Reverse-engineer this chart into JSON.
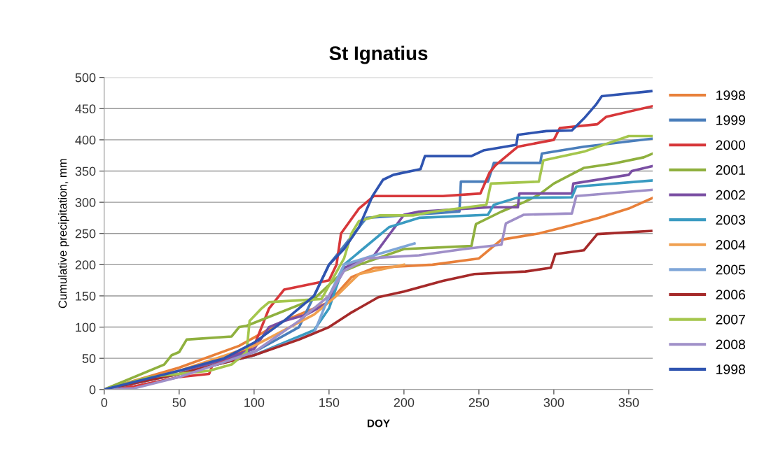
{
  "chart_data": {
    "type": "line",
    "title": "St Ignatius",
    "xlabel": "DOY",
    "ylabel": "Cumulative precipitation, mm",
    "xlim": [
      0,
      366
    ],
    "ylim": [
      0,
      500
    ],
    "xticks": [
      0,
      50,
      100,
      150,
      200,
      250,
      300,
      350
    ],
    "yticks": [
      0,
      50,
      100,
      150,
      200,
      250,
      300,
      350,
      400,
      450,
      500
    ],
    "grid": "y",
    "legend": "right",
    "marker": "none",
    "line_style": "solid",
    "series": [
      {
        "name": "1998",
        "color": "#e8803a",
        "x": [
          0,
          50,
          90,
          120,
          150,
          165,
          180,
          219,
          250,
          265,
          290,
          310,
          330,
          350,
          366
        ],
        "values": [
          0,
          35,
          70,
          110,
          140,
          180,
          195,
          200,
          210,
          240,
          250,
          262,
          275,
          290,
          307
        ]
      },
      {
        "name": "1999",
        "color": "#4a7ebb",
        "x": [
          0,
          50,
          100,
          130,
          150,
          160,
          175,
          237,
          238,
          256,
          260,
          291,
          292,
          320,
          366
        ],
        "values": [
          0,
          30,
          60,
          100,
          200,
          230,
          275,
          285,
          333,
          333,
          363,
          363,
          378,
          389,
          402
        ]
      },
      {
        "name": "2000",
        "color": "#d7373a",
        "x": [
          0,
          20,
          50,
          70,
          72,
          100,
          110,
          120,
          150,
          155,
          158,
          170,
          180,
          226,
          251,
          257,
          261,
          276,
          300,
          304,
          329,
          335,
          366
        ],
        "values": [
          0,
          5,
          20,
          25,
          38,
          70,
          130,
          160,
          175,
          200,
          250,
          290,
          310,
          310,
          314,
          347,
          359,
          389,
          400,
          419,
          425,
          437,
          454
        ]
      },
      {
        "name": "2001",
        "color": "#8fb03e",
        "x": [
          0,
          40,
          45,
          50,
          55,
          85,
          90,
          95,
          140,
          160,
          170,
          200,
          245,
          248,
          265,
          280,
          290,
          300,
          320,
          340,
          360,
          366
        ],
        "values": [
          0,
          40,
          55,
          60,
          80,
          85,
          100,
          102,
          145,
          190,
          200,
          225,
          230,
          265,
          285,
          300,
          312,
          330,
          355,
          362,
          372,
          378
        ]
      },
      {
        "name": "2002",
        "color": "#7a4fa3",
        "x": [
          0,
          50,
          100,
          110,
          120,
          135,
          150,
          160,
          180,
          200,
          210,
          257,
          276,
          277,
          312,
          313,
          350,
          352,
          366
        ],
        "values": [
          0,
          25,
          65,
          100,
          110,
          120,
          140,
          195,
          215,
          280,
          285,
          292,
          292,
          314,
          314,
          330,
          344,
          350,
          358
        ]
      },
      {
        "name": "2003",
        "color": "#3a9bc1",
        "x": [
          0,
          50,
          100,
          140,
          150,
          160,
          170,
          190,
          210,
          256,
          260,
          275,
          312,
          315,
          366
        ],
        "values": [
          0,
          25,
          55,
          95,
          130,
          200,
          220,
          260,
          275,
          280,
          296,
          307,
          308,
          325,
          335
        ]
      },
      {
        "name": "2004",
        "color": "#f0a050",
        "x": [
          0,
          50,
          100,
          140,
          155,
          170,
          200
        ],
        "values": [
          0,
          30,
          70,
          120,
          150,
          185,
          200
        ]
      },
      {
        "name": "2005",
        "color": "#7fa6d8",
        "x": [
          0,
          50,
          100,
          140,
          150,
          160,
          180,
          207
        ],
        "values": [
          0,
          25,
          55,
          90,
          150,
          200,
          215,
          234
        ]
      },
      {
        "name": "2006",
        "color": "#a52a2a",
        "x": [
          0,
          50,
          100,
          130,
          150,
          164,
          183,
          200,
          226,
          247,
          281,
          298,
          301,
          320,
          329,
          365
        ],
        "values": [
          0,
          25,
          55,
          80,
          100,
          122,
          148,
          157,
          174,
          185,
          189,
          195,
          217,
          223,
          249,
          254
        ]
      },
      {
        "name": "2007",
        "color": "#a4c64c",
        "x": [
          0,
          30,
          70,
          85,
          95,
          97,
          105,
          110,
          145,
          160,
          165,
          170,
          184,
          206,
          220,
          255,
          258,
          290,
          293,
          320,
          350,
          366
        ],
        "values": [
          0,
          20,
          30,
          40,
          60,
          110,
          130,
          140,
          145,
          210,
          250,
          270,
          279,
          279,
          285,
          296,
          330,
          333,
          367,
          381,
          406,
          406
        ]
      },
      {
        "name": "2008",
        "color": "#9f8fc8",
        "x": [
          0,
          20,
          50,
          100,
          130,
          150,
          160,
          175,
          210,
          240,
          265,
          268,
          280,
          312,
          315,
          366
        ],
        "values": [
          0,
          2,
          20,
          60,
          110,
          150,
          190,
          210,
          215,
          225,
          232,
          266,
          280,
          282,
          310,
          320
        ]
      },
      {
        "name": "1998",
        "color": "#2f54b0",
        "x": [
          0,
          20,
          50,
          80,
          100,
          120,
          140,
          150,
          160,
          170,
          179,
          186,
          193,
          211,
          214,
          245,
          253,
          275,
          276,
          295,
          312,
          320,
          328,
          332,
          365
        ],
        "values": [
          0,
          12,
          30,
          50,
          75,
          110,
          150,
          200,
          225,
          260,
          310,
          336,
          344,
          353,
          374,
          374,
          383,
          392,
          408,
          414,
          415,
          434,
          456,
          470,
          478
        ]
      }
    ]
  }
}
